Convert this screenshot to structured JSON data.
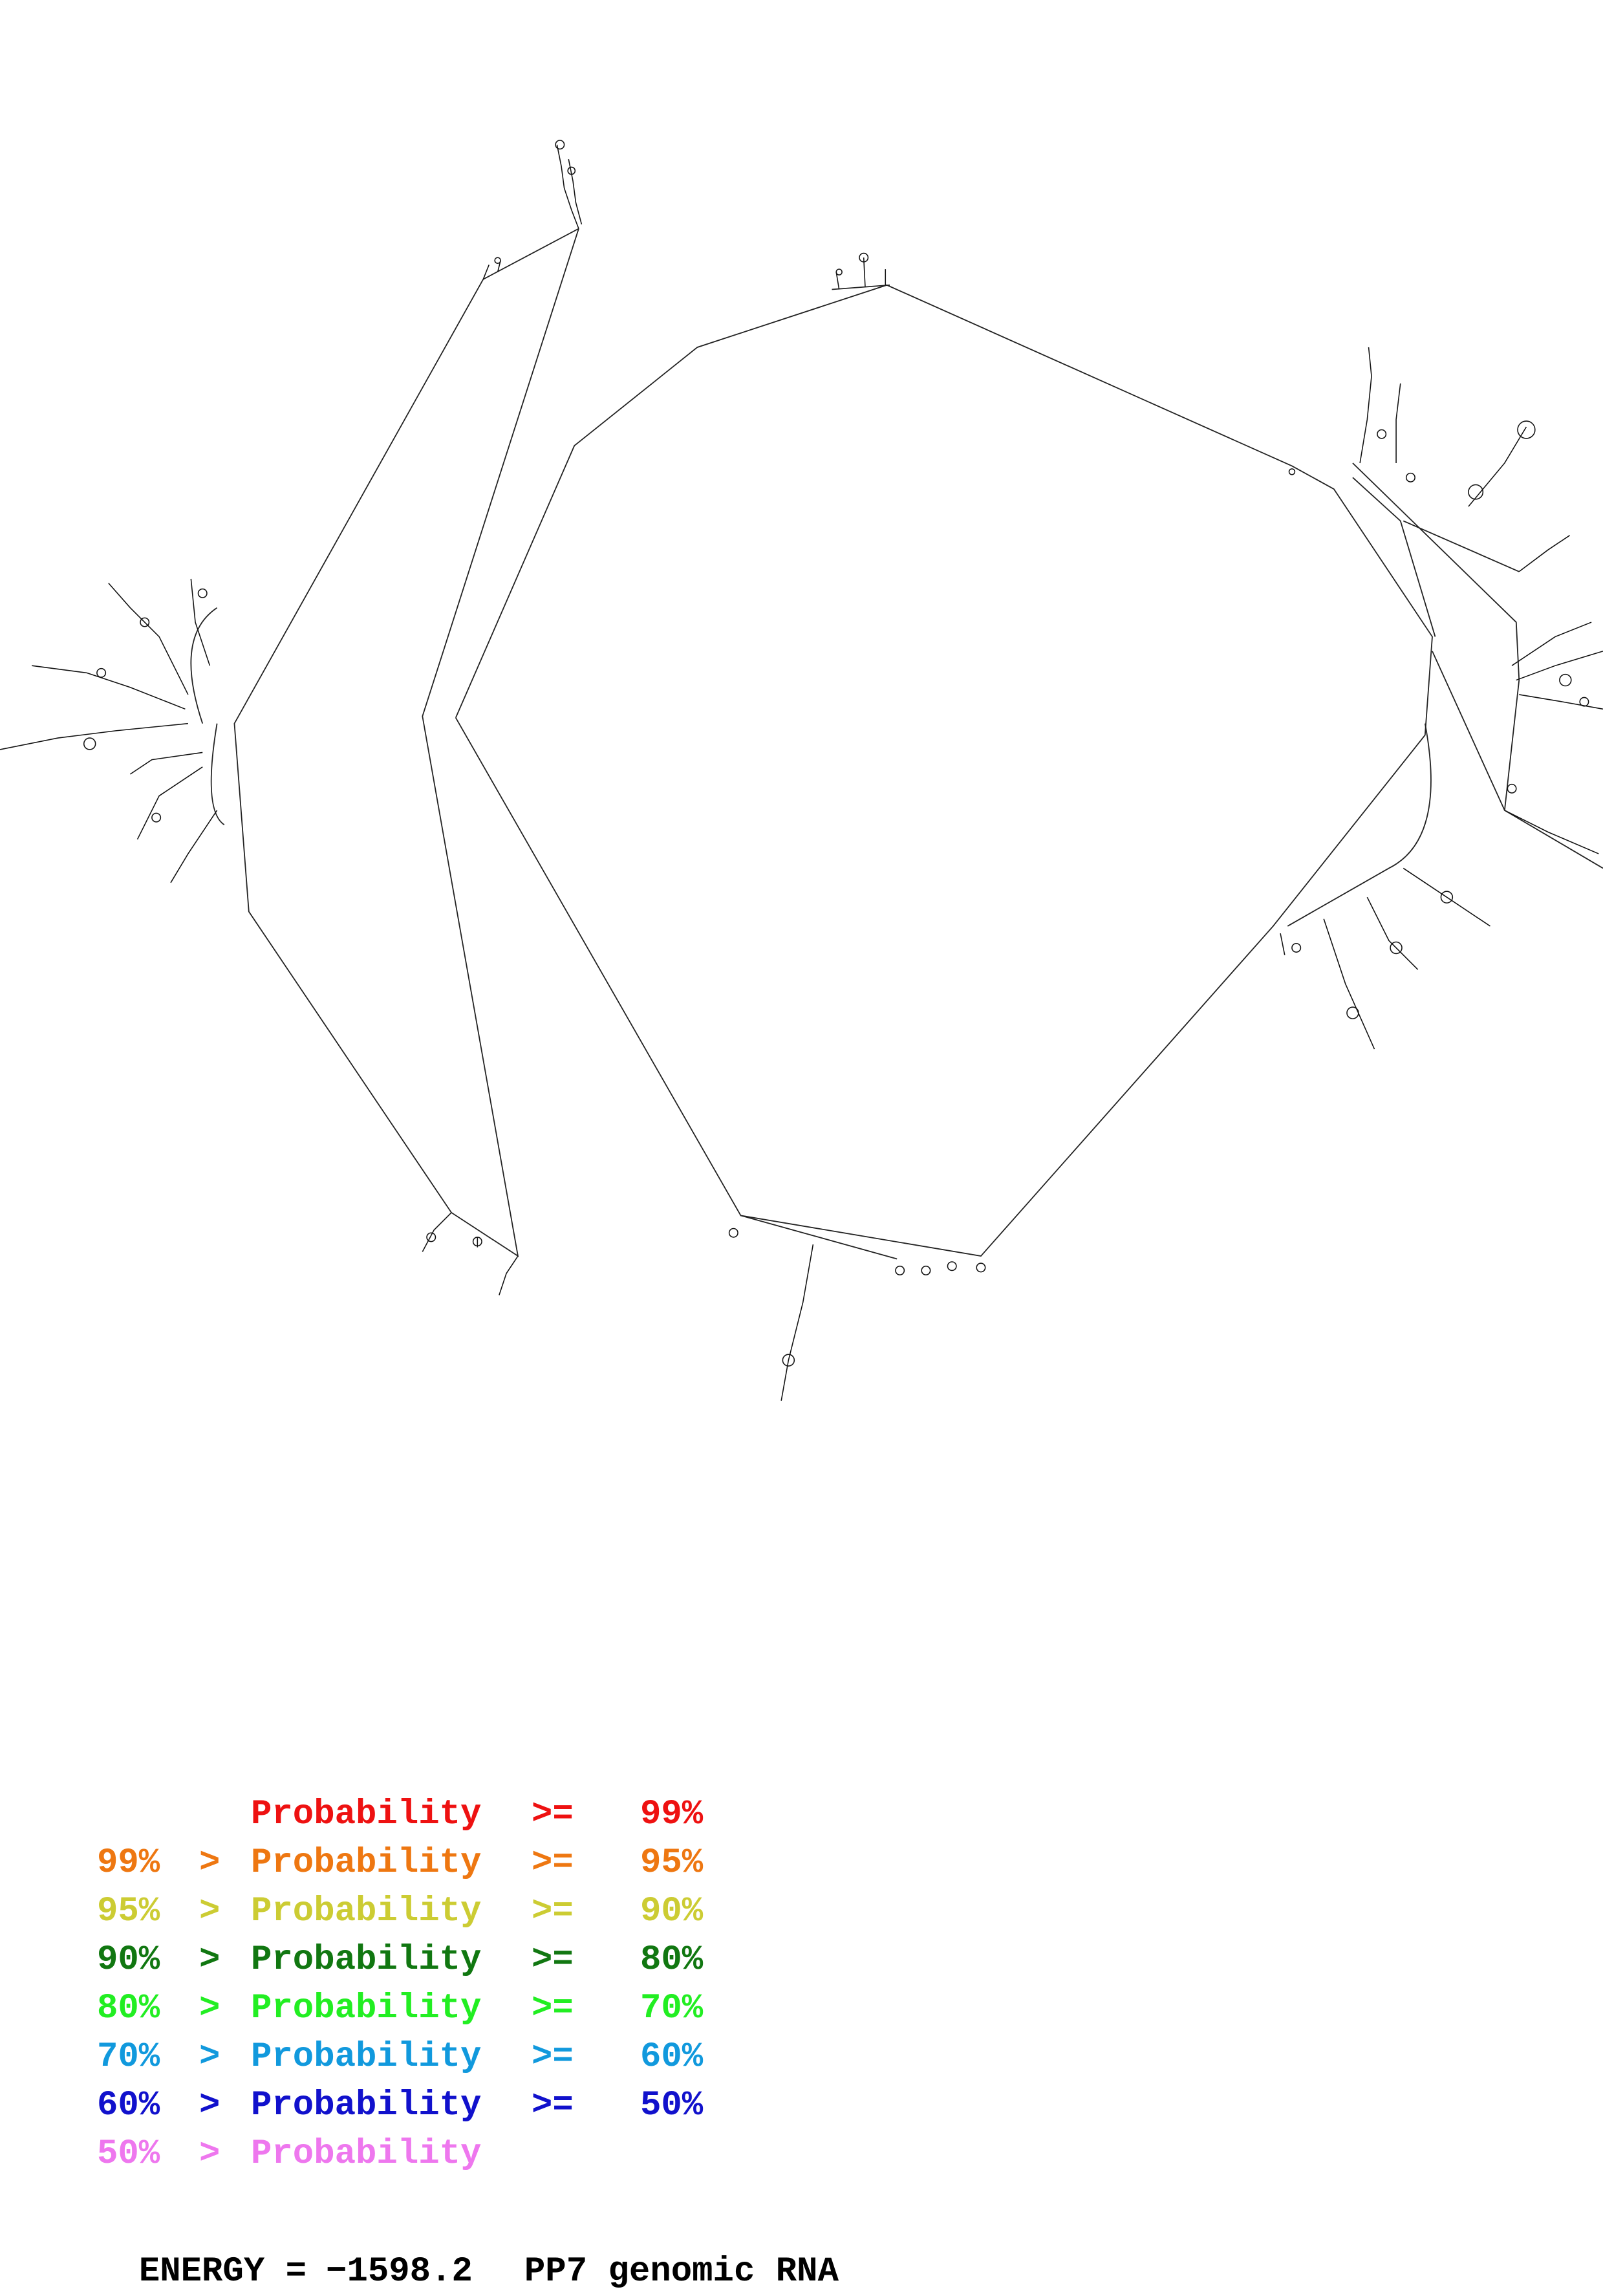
{
  "legend": {
    "rows": [
      {
        "lower": "",
        "gt": "",
        "label": "Probability",
        "ge": ">=",
        "upper": "99%",
        "color": "#ee1111"
      },
      {
        "lower": "99%",
        "gt": ">",
        "label": "Probability",
        "ge": ">=",
        "upper": "95%",
        "color": "#ee7711"
      },
      {
        "lower": "95%",
        "gt": ">",
        "label": "Probability",
        "ge": ">=",
        "upper": "90%",
        "color": "#cccc33"
      },
      {
        "lower": "90%",
        "gt": ">",
        "label": "Probability",
        "ge": ">=",
        "upper": "80%",
        "color": "#117711"
      },
      {
        "lower": "80%",
        "gt": ">",
        "label": "Probability",
        "ge": ">=",
        "upper": "70%",
        "color": "#22ee22"
      },
      {
        "lower": "70%",
        "gt": ">",
        "label": "Probability",
        "ge": ">=",
        "upper": "60%",
        "color": "#1199dd"
      },
      {
        "lower": "60%",
        "gt": ">",
        "label": "Probability",
        "ge": ">=",
        "upper": "50%",
        "color": "#1111cc"
      },
      {
        "lower": "50%",
        "gt": ">",
        "label": "Probability",
        "ge": "",
        "upper": "",
        "color": "#ee77ee"
      }
    ]
  },
  "footer": {
    "energy_label": "ENERGY =",
    "energy_value": "−1598.2",
    "rna_name": "PP7 genomic RNA"
  }
}
